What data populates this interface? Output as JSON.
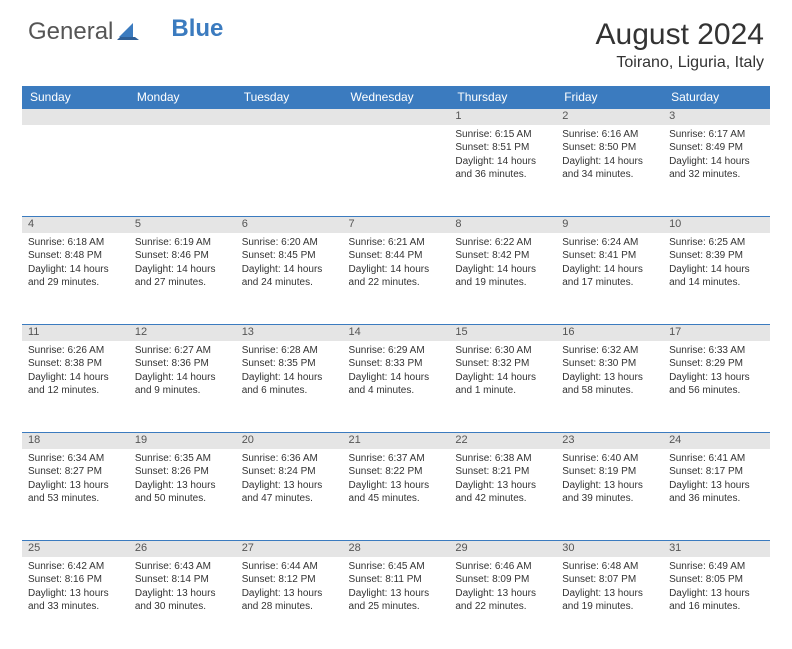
{
  "brand": {
    "part1": "General",
    "part2": "Blue"
  },
  "title": "August 2024",
  "location": "Toirano, Liguria, Italy",
  "colors": {
    "header_bg": "#3b7bbf",
    "header_text": "#ffffff",
    "daynum_bg": "#e5e5e5",
    "row_border": "#3b7bbf",
    "body_text": "#333333",
    "brand_gray": "#555555",
    "brand_blue": "#3b7bbf",
    "page_bg": "#ffffff"
  },
  "weekdays": [
    "Sunday",
    "Monday",
    "Tuesday",
    "Wednesday",
    "Thursday",
    "Friday",
    "Saturday"
  ],
  "rows": [
    {
      "nums": [
        "",
        "",
        "",
        "",
        "1",
        "2",
        "3"
      ],
      "cells": [
        null,
        null,
        null,
        null,
        {
          "sunrise": "6:15 AM",
          "sunset": "8:51 PM",
          "daylight": "14 hours and 36 minutes."
        },
        {
          "sunrise": "6:16 AM",
          "sunset": "8:50 PM",
          "daylight": "14 hours and 34 minutes."
        },
        {
          "sunrise": "6:17 AM",
          "sunset": "8:49 PM",
          "daylight": "14 hours and 32 minutes."
        }
      ]
    },
    {
      "nums": [
        "4",
        "5",
        "6",
        "7",
        "8",
        "9",
        "10"
      ],
      "cells": [
        {
          "sunrise": "6:18 AM",
          "sunset": "8:48 PM",
          "daylight": "14 hours and 29 minutes."
        },
        {
          "sunrise": "6:19 AM",
          "sunset": "8:46 PM",
          "daylight": "14 hours and 27 minutes."
        },
        {
          "sunrise": "6:20 AM",
          "sunset": "8:45 PM",
          "daylight": "14 hours and 24 minutes."
        },
        {
          "sunrise": "6:21 AM",
          "sunset": "8:44 PM",
          "daylight": "14 hours and 22 minutes."
        },
        {
          "sunrise": "6:22 AM",
          "sunset": "8:42 PM",
          "daylight": "14 hours and 19 minutes."
        },
        {
          "sunrise": "6:24 AM",
          "sunset": "8:41 PM",
          "daylight": "14 hours and 17 minutes."
        },
        {
          "sunrise": "6:25 AM",
          "sunset": "8:39 PM",
          "daylight": "14 hours and 14 minutes."
        }
      ]
    },
    {
      "nums": [
        "11",
        "12",
        "13",
        "14",
        "15",
        "16",
        "17"
      ],
      "cells": [
        {
          "sunrise": "6:26 AM",
          "sunset": "8:38 PM",
          "daylight": "14 hours and 12 minutes."
        },
        {
          "sunrise": "6:27 AM",
          "sunset": "8:36 PM",
          "daylight": "14 hours and 9 minutes."
        },
        {
          "sunrise": "6:28 AM",
          "sunset": "8:35 PM",
          "daylight": "14 hours and 6 minutes."
        },
        {
          "sunrise": "6:29 AM",
          "sunset": "8:33 PM",
          "daylight": "14 hours and 4 minutes."
        },
        {
          "sunrise": "6:30 AM",
          "sunset": "8:32 PM",
          "daylight": "14 hours and 1 minute."
        },
        {
          "sunrise": "6:32 AM",
          "sunset": "8:30 PM",
          "daylight": "13 hours and 58 minutes."
        },
        {
          "sunrise": "6:33 AM",
          "sunset": "8:29 PM",
          "daylight": "13 hours and 56 minutes."
        }
      ]
    },
    {
      "nums": [
        "18",
        "19",
        "20",
        "21",
        "22",
        "23",
        "24"
      ],
      "cells": [
        {
          "sunrise": "6:34 AM",
          "sunset": "8:27 PM",
          "daylight": "13 hours and 53 minutes."
        },
        {
          "sunrise": "6:35 AM",
          "sunset": "8:26 PM",
          "daylight": "13 hours and 50 minutes."
        },
        {
          "sunrise": "6:36 AM",
          "sunset": "8:24 PM",
          "daylight": "13 hours and 47 minutes."
        },
        {
          "sunrise": "6:37 AM",
          "sunset": "8:22 PM",
          "daylight": "13 hours and 45 minutes."
        },
        {
          "sunrise": "6:38 AM",
          "sunset": "8:21 PM",
          "daylight": "13 hours and 42 minutes."
        },
        {
          "sunrise": "6:40 AM",
          "sunset": "8:19 PM",
          "daylight": "13 hours and 39 minutes."
        },
        {
          "sunrise": "6:41 AM",
          "sunset": "8:17 PM",
          "daylight": "13 hours and 36 minutes."
        }
      ]
    },
    {
      "nums": [
        "25",
        "26",
        "27",
        "28",
        "29",
        "30",
        "31"
      ],
      "cells": [
        {
          "sunrise": "6:42 AM",
          "sunset": "8:16 PM",
          "daylight": "13 hours and 33 minutes."
        },
        {
          "sunrise": "6:43 AM",
          "sunset": "8:14 PM",
          "daylight": "13 hours and 30 minutes."
        },
        {
          "sunrise": "6:44 AM",
          "sunset": "8:12 PM",
          "daylight": "13 hours and 28 minutes."
        },
        {
          "sunrise": "6:45 AM",
          "sunset": "8:11 PM",
          "daylight": "13 hours and 25 minutes."
        },
        {
          "sunrise": "6:46 AM",
          "sunset": "8:09 PM",
          "daylight": "13 hours and 22 minutes."
        },
        {
          "sunrise": "6:48 AM",
          "sunset": "8:07 PM",
          "daylight": "13 hours and 19 minutes."
        },
        {
          "sunrise": "6:49 AM",
          "sunset": "8:05 PM",
          "daylight": "13 hours and 16 minutes."
        }
      ]
    }
  ],
  "labels": {
    "sunrise": "Sunrise:",
    "sunset": "Sunset:",
    "daylight": "Daylight:"
  }
}
